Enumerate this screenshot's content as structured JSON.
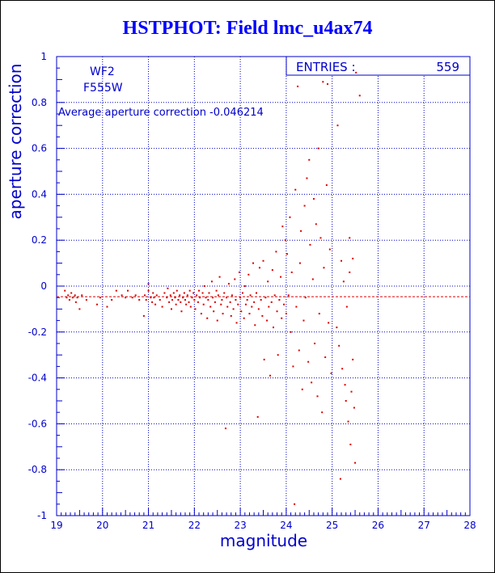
{
  "title": "HSTPHOT: Field lmc_u4ax74",
  "colors": {
    "axis": "#0000cc",
    "points": "#dd0000",
    "title": "#0000ff"
  },
  "chart_data": {
    "type": "scatter",
    "title": "HSTPHOT: Field lmc_u4ax74",
    "xlabel": "magnitude",
    "ylabel": "aperture correction",
    "xlim": [
      19,
      28
    ],
    "ylim": [
      -1,
      1
    ],
    "xticks": [
      "19",
      "20",
      "21",
      "22",
      "23",
      "24",
      "25",
      "26",
      "27",
      "28"
    ],
    "yticks": [
      "-1",
      "-0.8",
      "-0.6",
      "-0.4",
      "-0.2",
      "0",
      "0.2",
      "0.4",
      "0.6",
      "0.8",
      "1"
    ],
    "grid": true,
    "labels": {
      "chip": "WF2",
      "filter": "F555W",
      "average": "Average aperture correction -0.046214"
    },
    "stats": {
      "entries_label": "ENTRIES :",
      "entries_value": "559"
    },
    "reference_line": -0.046214,
    "points": [
      [
        19.18,
        -0.02
      ],
      [
        19.22,
        -0.05
      ],
      [
        19.25,
        -0.04
      ],
      [
        19.28,
        -0.06
      ],
      [
        19.32,
        -0.03
      ],
      [
        19.35,
        -0.05
      ],
      [
        19.4,
        -0.04
      ],
      [
        19.42,
        -0.07
      ],
      [
        19.45,
        -0.05
      ],
      [
        19.5,
        -0.1
      ],
      [
        19.55,
        -0.04
      ],
      [
        19.65,
        -0.06
      ],
      [
        19.88,
        -0.08
      ],
      [
        19.95,
        -0.05
      ],
      [
        20.1,
        -0.09
      ],
      [
        20.2,
        -0.06
      ],
      [
        20.3,
        -0.02
      ],
      [
        20.42,
        -0.04
      ],
      [
        20.5,
        -0.05
      ],
      [
        20.55,
        -0.02
      ],
      [
        20.65,
        -0.05
      ],
      [
        20.72,
        -0.04
      ],
      [
        20.8,
        -0.06
      ],
      [
        20.9,
        -0.13
      ],
      [
        20.92,
        -0.04
      ],
      [
        20.95,
        -0.06
      ],
      [
        21.0,
        -0.02
      ],
      [
        21.0,
        0.01
      ],
      [
        21.05,
        -0.05
      ],
      [
        21.08,
        -0.07
      ],
      [
        21.1,
        -0.03
      ],
      [
        21.12,
        -0.05
      ],
      [
        21.15,
        -0.08
      ],
      [
        21.18,
        -0.04
      ],
      [
        21.25,
        -0.06
      ],
      [
        21.3,
        -0.09
      ],
      [
        21.35,
        -0.03
      ],
      [
        21.4,
        -0.05
      ],
      [
        21.42,
        -0.01
      ],
      [
        21.45,
        -0.07
      ],
      [
        21.48,
        -0.04
      ],
      [
        21.5,
        -0.1
      ],
      [
        21.52,
        -0.06
      ],
      [
        21.55,
        -0.03
      ],
      [
        21.58,
        -0.05
      ],
      [
        21.6,
        -0.08
      ],
      [
        21.62,
        -0.02
      ],
      [
        21.65,
        -0.06
      ],
      [
        21.68,
        -0.04
      ],
      [
        21.7,
        -0.07
      ],
      [
        21.72,
        -0.11
      ],
      [
        21.75,
        -0.05
      ],
      [
        21.78,
        -0.03
      ],
      [
        21.8,
        -0.06
      ],
      [
        21.82,
        -0.08
      ],
      [
        21.85,
        -0.04
      ],
      [
        21.88,
        -0.07
      ],
      [
        21.9,
        -0.02
      ],
      [
        21.92,
        -0.09
      ],
      [
        21.95,
        -0.05
      ],
      [
        21.98,
        -0.03
      ],
      [
        22.0,
        -0.06
      ],
      [
        22.02,
        -0.1
      ],
      [
        22.05,
        -0.04
      ],
      [
        22.08,
        -0.07
      ],
      [
        22.1,
        -0.02
      ],
      [
        22.12,
        -0.05
      ],
      [
        22.15,
        -0.12
      ],
      [
        22.18,
        -0.03
      ],
      [
        22.2,
        -0.08
      ],
      [
        22.22,
        0.0
      ],
      [
        22.25,
        -0.05
      ],
      [
        22.28,
        -0.14
      ],
      [
        22.3,
        -0.06
      ],
      [
        22.32,
        -0.03
      ],
      [
        22.35,
        -0.09
      ],
      [
        22.38,
        0.02
      ],
      [
        22.4,
        -0.05
      ],
      [
        22.42,
        -0.11
      ],
      [
        22.45,
        -0.07
      ],
      [
        22.48,
        -0.02
      ],
      [
        22.5,
        -0.15
      ],
      [
        22.52,
        -0.04
      ],
      [
        22.55,
        0.04
      ],
      [
        22.58,
        -0.08
      ],
      [
        22.6,
        -0.06
      ],
      [
        22.62,
        -0.12
      ],
      [
        22.65,
        -0.03
      ],
      [
        22.68,
        -0.62
      ],
      [
        22.7,
        -0.05
      ],
      [
        22.72,
        -0.09
      ],
      [
        22.75,
        0.01
      ],
      [
        22.78,
        -0.07
      ],
      [
        22.8,
        -0.13
      ],
      [
        22.82,
        -0.04
      ],
      [
        22.85,
        -0.1
      ],
      [
        22.88,
        0.03
      ],
      [
        22.9,
        -0.06
      ],
      [
        22.92,
        -0.16
      ],
      [
        22.95,
        -0.08
      ],
      [
        22.98,
        0.06
      ],
      [
        23.0,
        -0.05
      ],
      [
        23.02,
        -0.11
      ],
      [
        23.05,
        -0.03
      ],
      [
        23.08,
        -0.14
      ],
      [
        23.1,
        0.0
      ],
      [
        23.12,
        -0.08
      ],
      [
        23.15,
        -0.06
      ],
      [
        23.18,
        0.05
      ],
      [
        23.2,
        -0.12
      ],
      [
        23.22,
        -0.04
      ],
      [
        23.25,
        -0.09
      ],
      [
        23.28,
        0.1
      ],
      [
        23.3,
        -0.07
      ],
      [
        23.32,
        -0.17
      ],
      [
        23.35,
        -0.03
      ],
      [
        23.38,
        -0.57
      ],
      [
        23.4,
        -0.1
      ],
      [
        23.42,
        0.08
      ],
      [
        23.45,
        -0.06
      ],
      [
        23.48,
        -0.13
      ],
      [
        23.5,
        0.11
      ],
      [
        23.52,
        -0.32
      ],
      [
        23.55,
        -0.05
      ],
      [
        23.58,
        -0.15
      ],
      [
        23.6,
        0.02
      ],
      [
        23.62,
        -0.09
      ],
      [
        23.65,
        -0.39
      ],
      [
        23.68,
        -0.07
      ],
      [
        23.7,
        0.07
      ],
      [
        23.72,
        -0.18
      ],
      [
        23.75,
        -0.04
      ],
      [
        23.78,
        0.15
      ],
      [
        23.8,
        -0.11
      ],
      [
        23.82,
        -0.3
      ],
      [
        23.85,
        -0.06
      ],
      [
        23.88,
        0.04
      ],
      [
        23.9,
        -0.14
      ],
      [
        23.92,
        0.26
      ],
      [
        23.95,
        -0.08
      ],
      [
        23.98,
        0.2
      ],
      [
        24.0,
        -0.12
      ],
      [
        24.02,
        0.14
      ],
      [
        24.05,
        -0.04
      ],
      [
        24.08,
        0.3
      ],
      [
        24.1,
        -0.2
      ],
      [
        24.12,
        0.06
      ],
      [
        24.15,
        -0.35
      ],
      [
        24.18,
        -0.95
      ],
      [
        24.2,
        0.42
      ],
      [
        24.22,
        -0.09
      ],
      [
        24.25,
        0.87
      ],
      [
        24.28,
        -0.28
      ],
      [
        24.3,
        0.1
      ],
      [
        24.32,
        0.24
      ],
      [
        24.35,
        -0.45
      ],
      [
        24.38,
        -0.15
      ],
      [
        24.4,
        0.35
      ],
      [
        24.42,
        -0.05
      ],
      [
        24.45,
        0.47
      ],
      [
        24.48,
        -0.33
      ],
      [
        24.5,
        0.55
      ],
      [
        24.52,
        0.18
      ],
      [
        24.55,
        -0.42
      ],
      [
        24.58,
        0.03
      ],
      [
        24.6,
        0.38
      ],
      [
        24.62,
        -0.25
      ],
      [
        24.65,
        0.27
      ],
      [
        24.68,
        -0.48
      ],
      [
        24.7,
        0.6
      ],
      [
        24.72,
        -0.12
      ],
      [
        24.75,
        0.21
      ],
      [
        24.78,
        -0.55
      ],
      [
        24.8,
        0.89
      ],
      [
        24.82,
        0.08
      ],
      [
        24.85,
        -0.31
      ],
      [
        24.88,
        0.44
      ],
      [
        24.9,
        0.88
      ],
      [
        24.92,
        -0.16
      ],
      [
        24.95,
        0.16
      ],
      [
        24.98,
        -0.38
      ],
      [
        25.1,
        -0.18
      ],
      [
        25.12,
        0.7
      ],
      [
        25.15,
        -0.26
      ],
      [
        25.18,
        -0.84
      ],
      [
        25.2,
        0.11
      ],
      [
        25.22,
        -0.36
      ],
      [
        25.25,
        0.02
      ],
      [
        25.28,
        -0.43
      ],
      [
        25.3,
        -0.5
      ],
      [
        25.32,
        -0.09
      ],
      [
        25.35,
        -0.59
      ],
      [
        25.38,
        0.06
      ],
      [
        25.4,
        -0.69
      ],
      [
        25.42,
        -0.46
      ],
      [
        25.45,
        -0.32
      ],
      [
        25.48,
        -0.53
      ],
      [
        25.5,
        -0.77
      ],
      [
        25.52,
        0.93
      ],
      [
        25.6,
        0.83
      ],
      [
        25.45,
        0.12
      ],
      [
        25.38,
        0.21
      ]
    ]
  }
}
